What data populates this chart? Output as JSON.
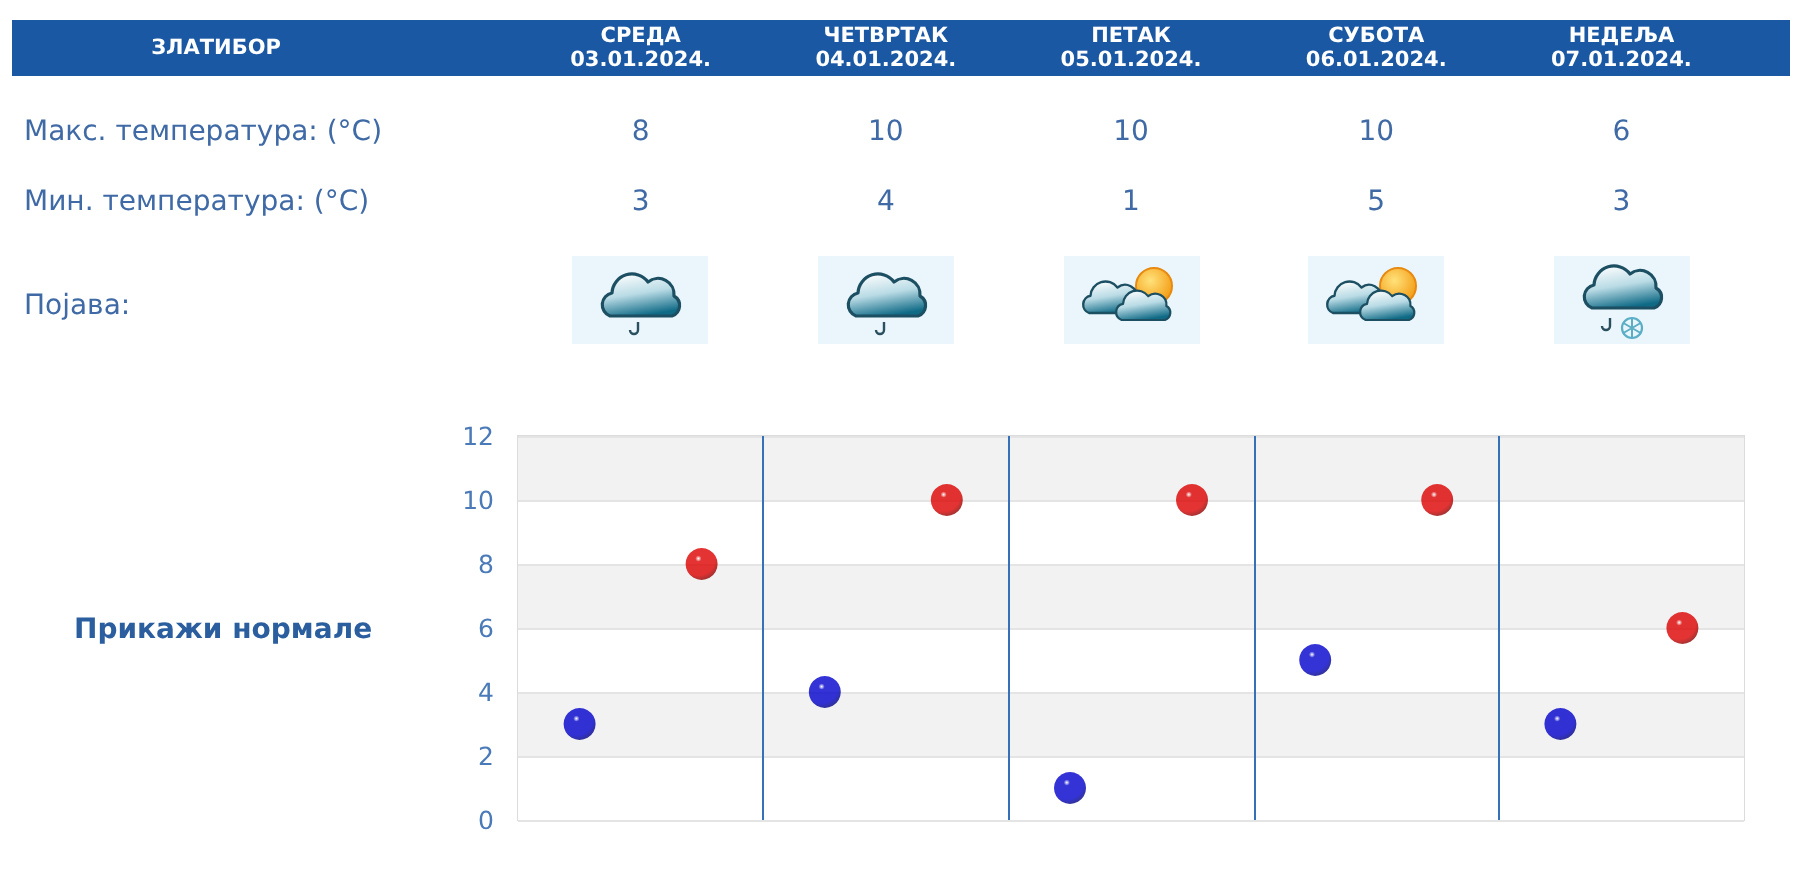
{
  "chart_data": {
    "type": "scatter",
    "title": "ЗЛАТИБОР",
    "categories": [
      null,
      null,
      null,
      null,
      null
    ],
    "series": [
      {
        "color": "#dd0000",
        "values": [
          8,
          10,
          10,
          10,
          6
        ]
      },
      {
        "color": "#0000cc",
        "values": [
          3,
          4,
          1,
          5,
          3
        ]
      }
    ],
    "ylim": [
      0,
      12
    ],
    "yticks": [
      0,
      2,
      4,
      6,
      8,
      10,
      12
    ],
    "grid": true,
    "marker": "circle",
    "data_labels": true,
    "annotations": [
      "СРЕДА\n03.01.2024.",
      "ЧЕТВРТАК\n04.01.2024.",
      "ПЕТАК\n05.01.2024.",
      "СУБОТА\n06.01.2024.",
      "НЕДЕЉА\n07.01.2024.",
      "Макс. температура: (°C)",
      "Мин. температура: (°C)",
      "Појава:",
      "Прикажи нормале"
    ]
  }
}
